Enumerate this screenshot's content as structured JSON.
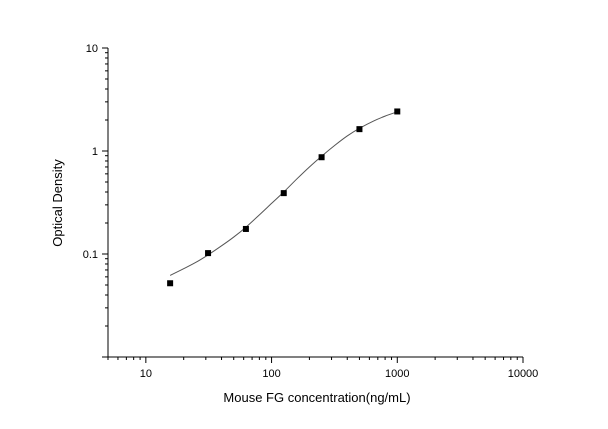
{
  "chart_data": {
    "type": "scatter",
    "title": "",
    "xlabel": "Mouse FG concentration(ng/mL)",
    "ylabel": "Optical Density",
    "xscale": "log",
    "yscale": "log",
    "xlim": [
      5,
      10000
    ],
    "ylim": [
      0.01,
      10
    ],
    "x_ticks": [
      "10",
      "100",
      "1000",
      "10000"
    ],
    "y_ticks": [
      "0.1",
      "1",
      "10"
    ],
    "grid": false,
    "legend": "none",
    "series": [
      {
        "points": [
          {
            "x": 15.6,
            "y": 0.052
          },
          {
            "x": 31.25,
            "y": 0.102
          },
          {
            "x": 62.5,
            "y": 0.175
          },
          {
            "x": 125,
            "y": 0.39
          },
          {
            "x": 250,
            "y": 0.87
          },
          {
            "x": 500,
            "y": 1.63
          },
          {
            "x": 1000,
            "y": 2.42
          }
        ]
      }
    ],
    "fit_curve": {
      "x": [
        15.6,
        20,
        25,
        31.25,
        40,
        50,
        62.5,
        80,
        100,
        125,
        160,
        200,
        250,
        320,
        400,
        500,
        650,
        800,
        1000
      ],
      "y": [
        0.062,
        0.072,
        0.083,
        0.098,
        0.12,
        0.146,
        0.182,
        0.24,
        0.31,
        0.4,
        0.54,
        0.7,
        0.89,
        1.14,
        1.4,
        1.66,
        1.96,
        2.18,
        2.4
      ]
    },
    "colors": {
      "axis": "#000000",
      "marker": "#000000",
      "curve": "#555555"
    }
  }
}
